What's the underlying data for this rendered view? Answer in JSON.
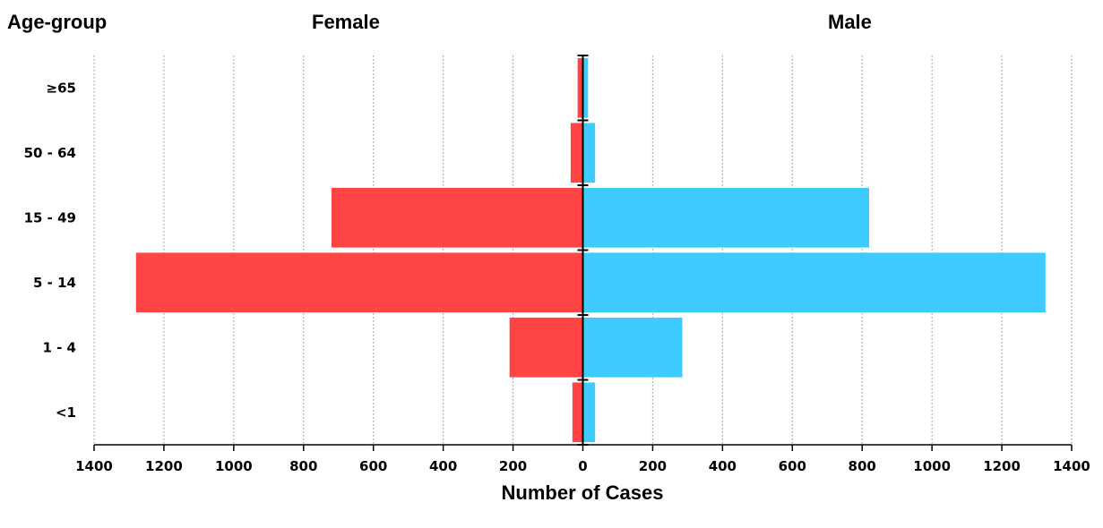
{
  "headings": {
    "age_group": "Age-group",
    "female": "Female",
    "male": "Male"
  },
  "chart_data": {
    "type": "bar",
    "orientation": "horizontal",
    "layout": "population-pyramid",
    "categories": [
      "≥65",
      "50 - 64",
      "15 - 49",
      "5 - 14",
      "1 - 4",
      "<1"
    ],
    "series": [
      {
        "name": "Female",
        "values": [
          15,
          35,
          720,
          1280,
          210,
          30
        ],
        "color": "#FF4444"
      },
      {
        "name": "Male",
        "values": [
          15,
          35,
          820,
          1325,
          285,
          35
        ],
        "color": "#3ECBFF"
      }
    ],
    "xlabel": "Number of Cases",
    "xlim": [
      -1400,
      1400
    ],
    "xticks": [
      -1400,
      -1200,
      -1000,
      -800,
      -600,
      -400,
      -200,
      0,
      200,
      400,
      600,
      800,
      1000,
      1200,
      1400
    ],
    "xtick_labels": [
      "1400",
      "1200",
      "1000",
      "800",
      "600",
      "400",
      "200",
      "0",
      "200",
      "400",
      "600",
      "800",
      "1000",
      "1200",
      "1400"
    ],
    "grid": "vertical-dotted"
  }
}
